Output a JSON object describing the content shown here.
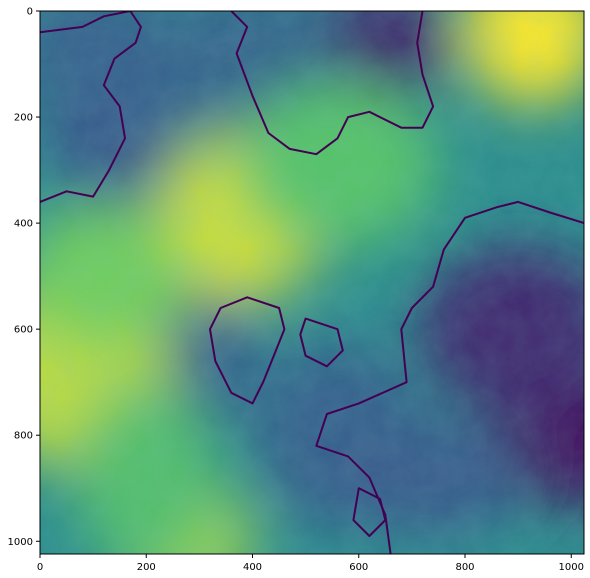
{
  "chart_data": {
    "type": "heatmap",
    "title": "",
    "xlabel": "",
    "ylabel": "",
    "colormap": "viridis",
    "image_size": [
      1024,
      1024
    ],
    "xlim": [
      0,
      1024
    ],
    "ylim": [
      1024,
      0
    ],
    "x_ticks": [
      0,
      200,
      400,
      600,
      800,
      1000
    ],
    "y_ticks": [
      0,
      200,
      400,
      600,
      800,
      1000
    ],
    "x_tick_labels": [
      "0",
      "200",
      "400",
      "600",
      "800",
      "1000"
    ],
    "y_tick_labels": [
      "0",
      "200",
      "400",
      "600",
      "800",
      "1000"
    ],
    "grid": false,
    "legend": "none",
    "contour_color": "#440154",
    "description_levels": {
      "high_regions": [
        {
          "x": 930,
          "y": 40,
          "level": 1.0
        },
        {
          "x": 380,
          "y": 390,
          "level": 0.93
        },
        {
          "x": 60,
          "y": 680,
          "level": 0.9
        },
        {
          "x": 270,
          "y": 1000,
          "level": 0.85
        },
        {
          "x": 120,
          "y": 500,
          "level": 0.78
        },
        {
          "x": 560,
          "y": 290,
          "level": 0.72
        },
        {
          "x": 200,
          "y": 880,
          "level": 0.7
        }
      ],
      "low_regions": [
        {
          "x": 640,
          "y": 60,
          "level": 0.1
        },
        {
          "x": 1000,
          "y": 800,
          "level": 0.05
        },
        {
          "x": 900,
          "y": 600,
          "level": 0.12
        },
        {
          "x": 130,
          "y": 200,
          "level": 0.28
        },
        {
          "x": 100,
          "y": 60,
          "level": 0.3
        },
        {
          "x": 390,
          "y": 90,
          "level": 0.32
        },
        {
          "x": 280,
          "y": 650,
          "level": 0.3
        },
        {
          "x": 560,
          "y": 800,
          "level": 0.3
        },
        {
          "x": 730,
          "y": 880,
          "level": 0.28
        }
      ]
    }
  }
}
